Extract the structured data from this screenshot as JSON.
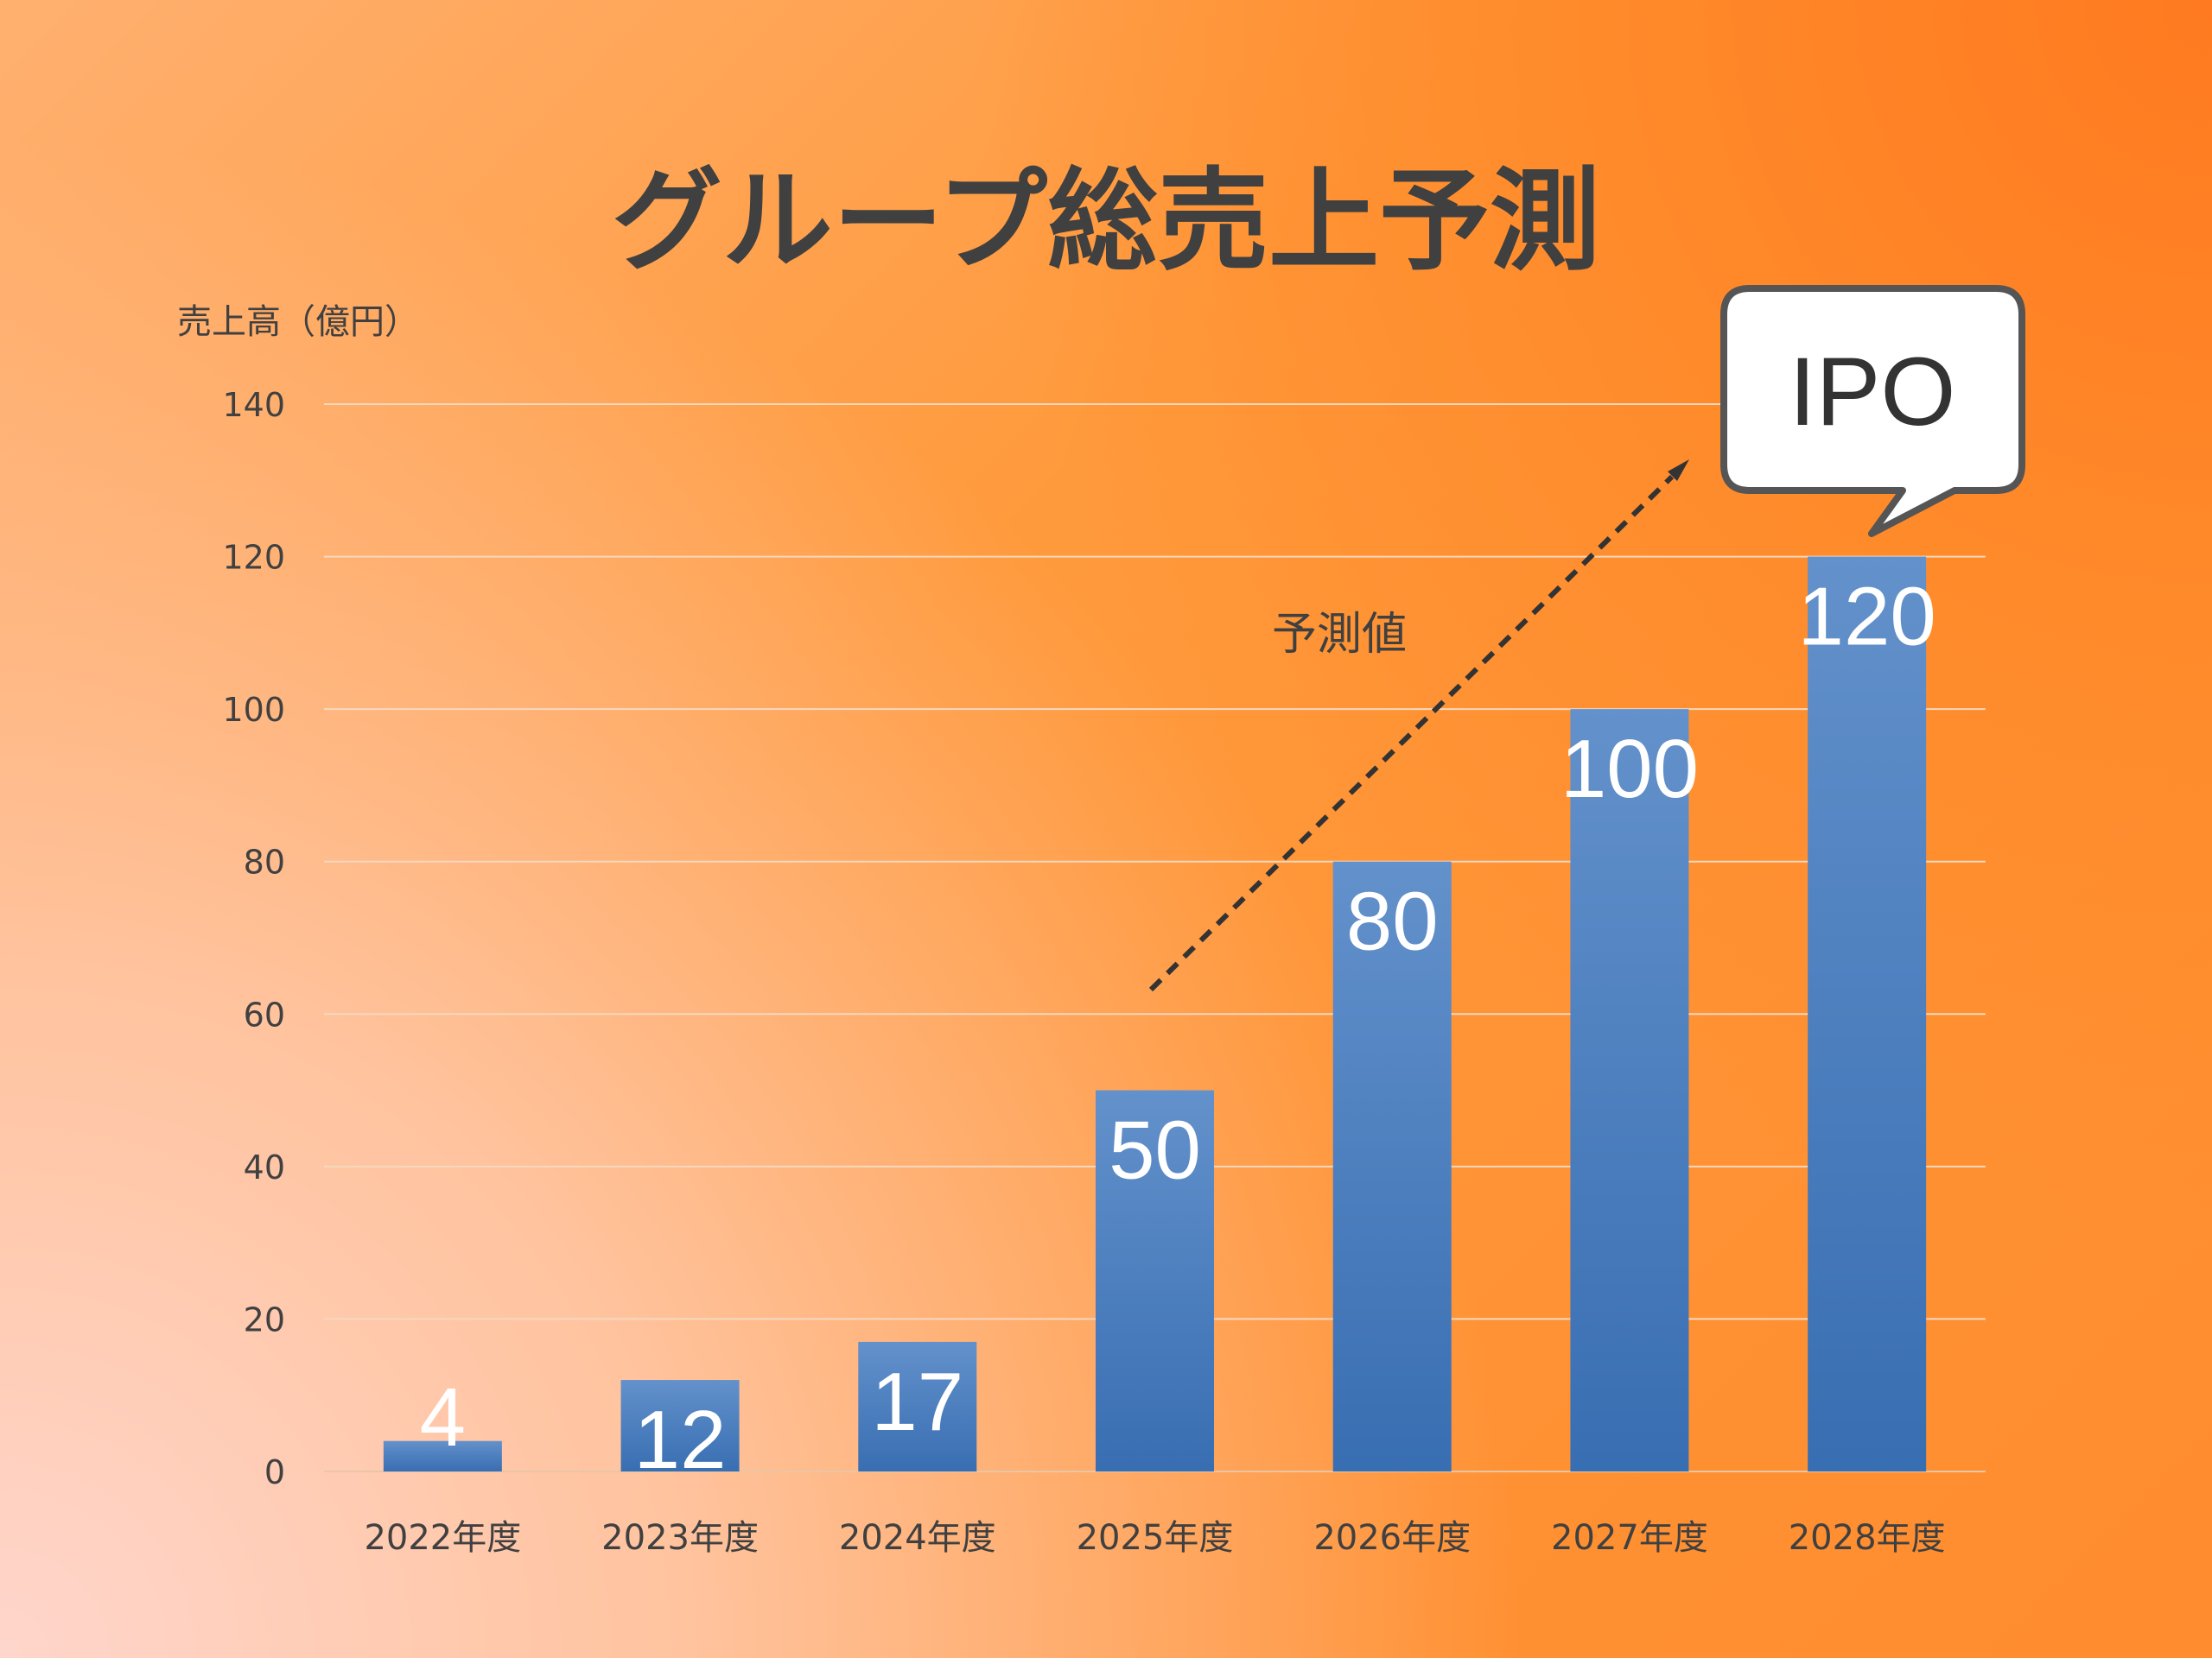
{
  "chart_data": {
    "type": "bar",
    "title": "グループ総売上予測",
    "ylabel": "売上高（億円）",
    "xlabel": "",
    "categories": [
      "2022年度",
      "2023年度",
      "2024年度",
      "2025年度",
      "2026年度",
      "2027年度",
      "2028年度"
    ],
    "values": [
      4,
      12,
      17,
      50,
      80,
      100,
      120
    ],
    "data_labels": [
      "4",
      "12",
      "17",
      "50",
      "80",
      "100",
      "120"
    ],
    "ylim": [
      0,
      140
    ],
    "yticks": [
      "0",
      "20",
      "40",
      "60",
      "80",
      "100",
      "120",
      "140"
    ],
    "grid": true,
    "annotations": {
      "forecast_label": "予測値",
      "callout_text": "IPO"
    },
    "colors": {
      "bar_top": "#5f8fca",
      "bar_bottom": "#3a70b5",
      "grid": "#f3d7bd",
      "text": "#404040",
      "data_label": "#ffffff"
    }
  }
}
